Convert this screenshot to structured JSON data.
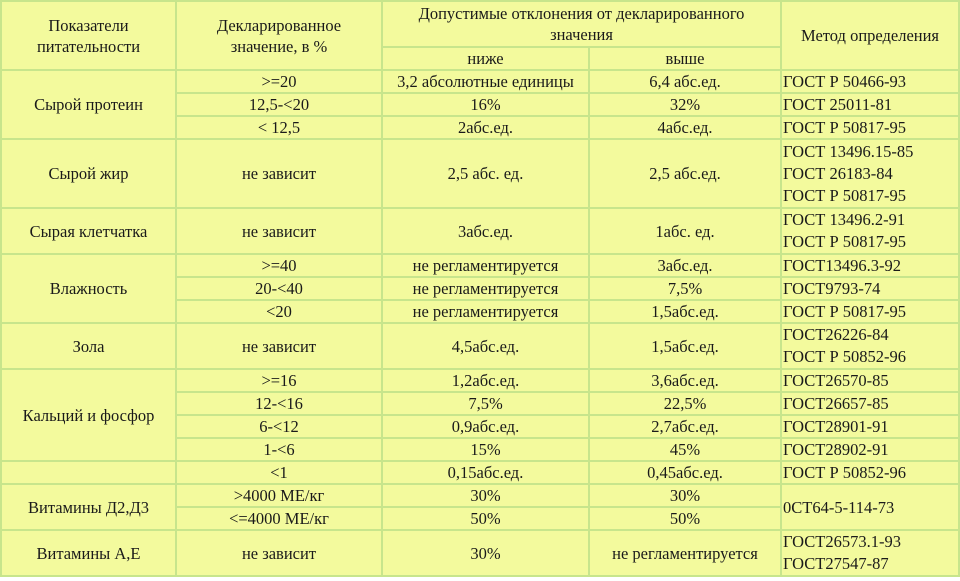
{
  "header": {
    "indicator": [
      "Показатели",
      "питательности"
    ],
    "declared": [
      "Декларированное",
      "значение, в %"
    ],
    "deviation": [
      "Допустимые отклонения от декларированного",
      "значения"
    ],
    "below": "ниже",
    "above": "выше",
    "method": "Метод определения"
  },
  "rows": {
    "protein": {
      "name": "Сырой протеин",
      "r": [
        {
          "v": ">=20",
          "lo": "3,2 абсолютные единицы",
          "hi": "6,4 абс.ед.",
          "m": "ГОСТ Р 50466-93"
        },
        {
          "v": "12,5-<20",
          "lo": "16%",
          "hi": "32%",
          "m": "ГОСТ 25011-81"
        },
        {
          "v": "< 12,5",
          "lo": "2абс.ед.",
          "hi": "4абс.ед.",
          "m": "ГОСТ Р 50817-95"
        }
      ]
    },
    "fat": {
      "name": "Сырой жир",
      "v": "не зависит",
      "lo": "2,5 абс. ед.",
      "hi": "2,5 абс.ед.",
      "m": [
        "ГОСТ 13496.15-85",
        "ГОСТ 26183-84",
        "ГОСТ Р 50817-95"
      ]
    },
    "fiber": {
      "name": "Сырая клетчатка",
      "v": "не зависит",
      "lo": "3абс.ед.",
      "hi": "1абс. ед.",
      "m": [
        "ГОСТ 13496.2-91",
        "ГОСТ Р 50817-95"
      ]
    },
    "moisture": {
      "name": "Влажность",
      "r": [
        {
          "v": ">=40",
          "lo": "не регламентируется",
          "hi": "3абс.ед.",
          "m": "ГОСТ13496.3-92"
        },
        {
          "v": "20-<40",
          "lo": "не регламентируется",
          "hi": "7,5%",
          "m": "ГОСТ9793-74"
        },
        {
          "v": "<20",
          "lo": "не регламентируется",
          "hi": "1,5абс.ед.",
          "m": "ГОСТ Р 50817-95"
        }
      ]
    },
    "ash": {
      "name": "Зола",
      "v": "не зависит",
      "lo": "4,5абс.ед.",
      "hi": "1,5абс.ед.",
      "m": [
        "ГОСТ26226-84",
        "ГОСТ Р 50852-96"
      ]
    },
    "ca": {
      "name": "Кальций и фосфор",
      "r": [
        {
          "v": ">=16",
          "lo": "1,2абс.ед.",
          "hi": "3,6абс.ед.",
          "m": "ГОСТ26570-85"
        },
        {
          "v": "12-<16",
          "lo": "7,5%",
          "hi": "22,5%",
          "m": "ГОСТ26657-85"
        },
        {
          "v": "6-<12",
          "lo": "0,9абс.ед.",
          "hi": "2,7абс.ед.",
          "m": "ГОСТ28901-91"
        },
        {
          "v": "1-<6",
          "lo": "15%",
          "hi": "45%",
          "m": "ГОСТ28902-91"
        },
        {
          "v": "<1",
          "lo": "0,15абс.ед.",
          "hi": "0,45абс.ед.",
          "m": "ГОСТ Р 50852-96"
        }
      ]
    },
    "vitd": {
      "name": "Витамины Д2,Д3",
      "m": "0СТ64-5-114-73",
      "r": [
        {
          "v": ">4000 МЕ/кг",
          "lo": "30%",
          "hi": "30%"
        },
        {
          "v": "<=4000 МЕ/кг",
          "lo": "50%",
          "hi": "50%"
        }
      ]
    },
    "vitae": {
      "name": "Витамины А,Е",
      "v": "не зависит",
      "lo": "30%",
      "hi": "не регламентируется",
      "m": [
        "ГОСТ26573.1-93",
        "ГОСТ27547-87"
      ]
    }
  }
}
